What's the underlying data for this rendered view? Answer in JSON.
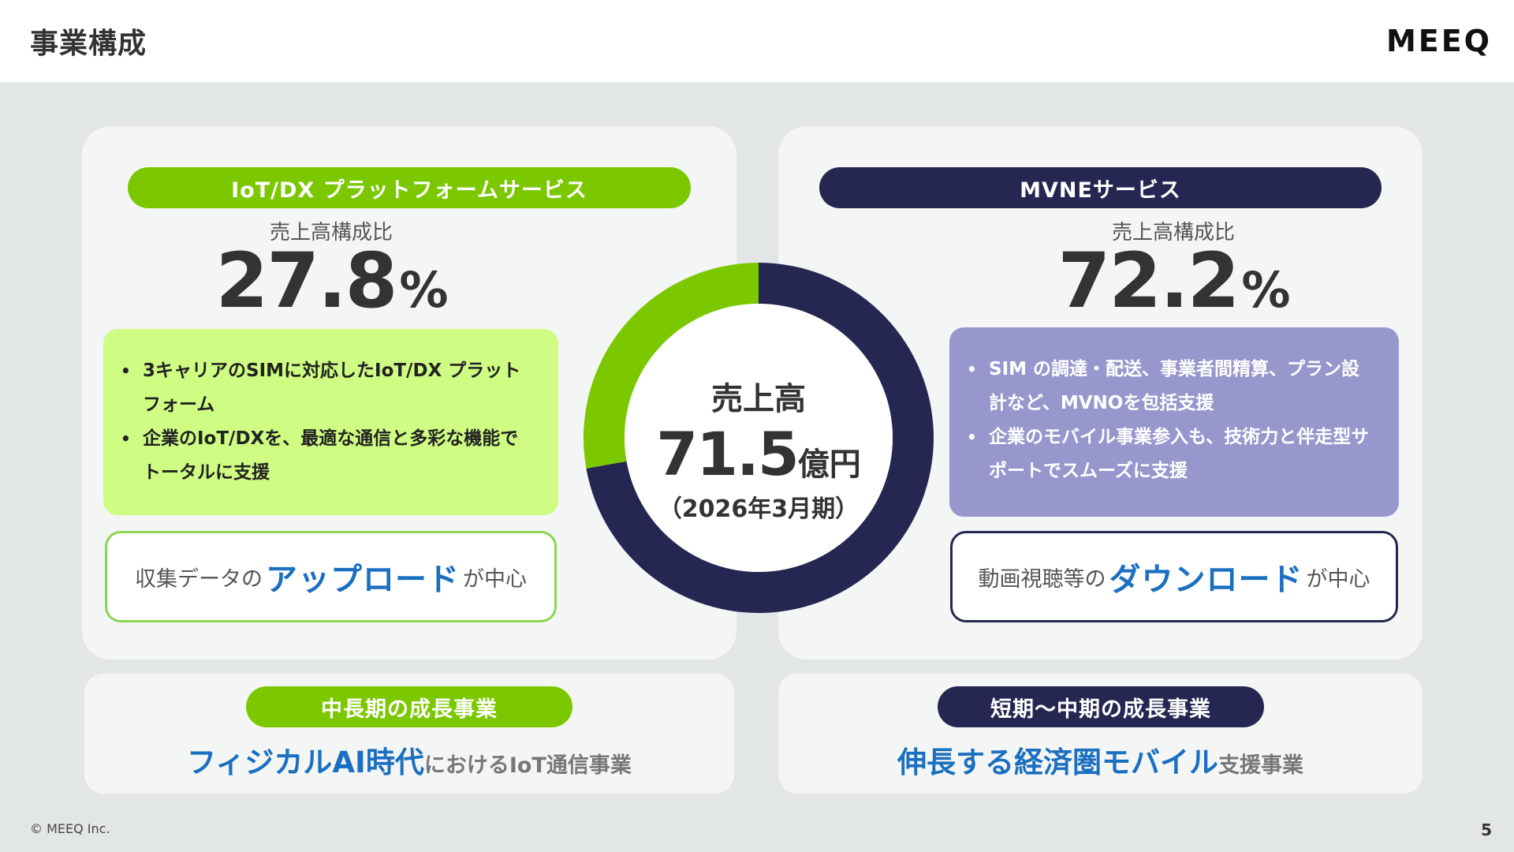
{
  "header": {
    "title": "事業構成",
    "logo": "MEEQ"
  },
  "left": {
    "pill": "IoT/DX プラットフォームサービス",
    "ratio_label": "売上高構成比",
    "ratio_value": "27.8",
    "ratio_unit": "%",
    "bullets": [
      "3キャリアのSIMに対応したIoT/DX プラットフォーム",
      "企業のIoT/DXを、最適な通信と多彩な機能でトータルに支援"
    ],
    "focus_prefix": "収集データの",
    "focus_em": "アップロード",
    "focus_suffix": "が中心"
  },
  "right": {
    "pill": "MVNEサービス",
    "ratio_label": "売上高構成比",
    "ratio_value": "72.2",
    "ratio_unit": "%",
    "bullets": [
      "SIM の調達・配送、事業者間精算、プラン設計など、MVNOを包括支援",
      "企業のモバイル事業参入も、技術力と伴走型サポートでスムーズに支援"
    ],
    "focus_prefix": "動画視聴等の",
    "focus_em": "ダウンロード",
    "focus_suffix": "が中心"
  },
  "center": {
    "label": "売上高",
    "value": "71.5",
    "unit": "億円",
    "period": "（2026年3月期）"
  },
  "chart_data": {
    "type": "pie",
    "categories": [
      "IoT/DX プラットフォームサービス",
      "MVNEサービス"
    ],
    "values": [
      27.8,
      72.2
    ],
    "colors": [
      "#7bc800",
      "#262652"
    ],
    "donut": true
  },
  "bottom_left": {
    "pill": "中長期の成長事業",
    "em": "フィジカルAI時代",
    "suffix": "におけるIoT通信事業"
  },
  "bottom_right": {
    "pill": "短期〜中期の成長事業",
    "em": "伸長する経済圏モバイル",
    "suffix": "支援事業"
  },
  "footer": {
    "copyright": "© MEEQ Inc.",
    "page": "5"
  }
}
